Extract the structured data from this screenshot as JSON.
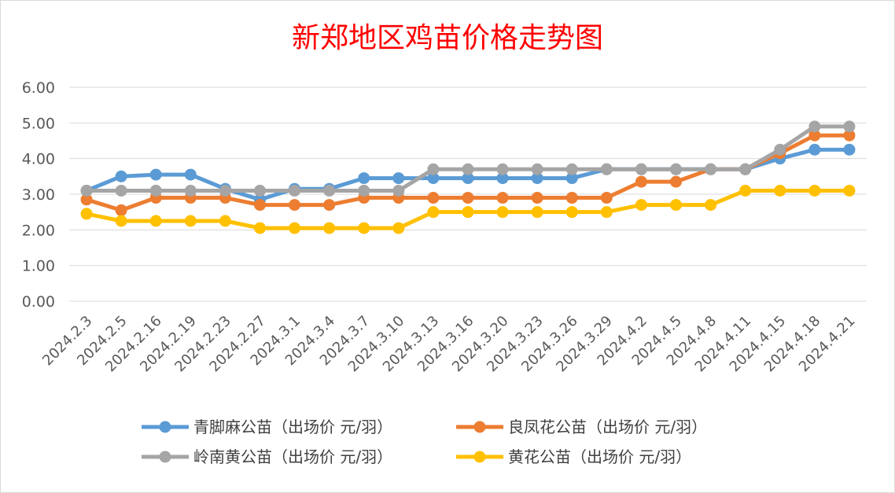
{
  "chart_data": {
    "type": "line",
    "title": "新郑地区鸡苗价格走势图",
    "xlabel": "",
    "ylabel": "",
    "ylim": [
      0,
      6
    ],
    "yticks": [
      "0.00",
      "1.00",
      "2.00",
      "3.00",
      "4.00",
      "5.00",
      "6.00"
    ],
    "grid": "horizontal",
    "legend_position": "bottom",
    "categories": [
      "2024.2.3",
      "2024.2.5",
      "2024.2.16",
      "2024.2.19",
      "2024.2.23",
      "2024.2.27",
      "2024.3.1",
      "2024.3.4",
      "2024.3.7",
      "2024.3.10",
      "2024.3.13",
      "2024.3.16",
      "2024.3.20",
      "2024.3.23",
      "2024.3.26",
      "2024.3.29",
      "2024.4.2",
      "2024.4.5",
      "2024.4.8",
      "2024.4.11",
      "2024.4.15",
      "2024.4.18",
      "2024.4.21"
    ],
    "series": [
      {
        "name": "青脚麻公苗（出场价 元/羽）",
        "color": "#5b9bd5",
        "values": [
          3.1,
          3.5,
          3.55,
          3.55,
          3.15,
          2.85,
          3.15,
          3.15,
          3.45,
          3.45,
          3.45,
          3.45,
          3.45,
          3.45,
          3.45,
          3.7,
          3.7,
          3.7,
          3.7,
          3.7,
          4.0,
          4.25,
          4.25
        ]
      },
      {
        "name": "良凤花公苗（出场价 元/羽）",
        "color": "#ed7d31",
        "values": [
          2.85,
          2.55,
          2.9,
          2.9,
          2.9,
          2.7,
          2.7,
          2.7,
          2.9,
          2.9,
          2.9,
          2.9,
          2.9,
          2.9,
          2.9,
          2.9,
          3.35,
          3.35,
          3.7,
          3.7,
          4.15,
          4.65,
          4.65
        ]
      },
      {
        "name": "岭南黄公苗（出场价 元/羽）",
        "color": "#a5a5a5",
        "values": [
          3.1,
          3.1,
          3.1,
          3.1,
          3.1,
          3.1,
          3.1,
          3.1,
          3.1,
          3.1,
          3.7,
          3.7,
          3.7,
          3.7,
          3.7,
          3.7,
          3.7,
          3.7,
          3.7,
          3.7,
          4.25,
          4.9,
          4.9
        ]
      },
      {
        "name": "黄花公苗（出场价 元/羽）",
        "color": "#ffc000",
        "values": [
          2.45,
          2.25,
          2.25,
          2.25,
          2.25,
          2.05,
          2.05,
          2.05,
          2.05,
          2.05,
          2.5,
          2.5,
          2.5,
          2.5,
          2.5,
          2.5,
          2.7,
          2.7,
          2.7,
          3.1,
          3.1,
          3.1,
          3.1
        ]
      }
    ]
  }
}
